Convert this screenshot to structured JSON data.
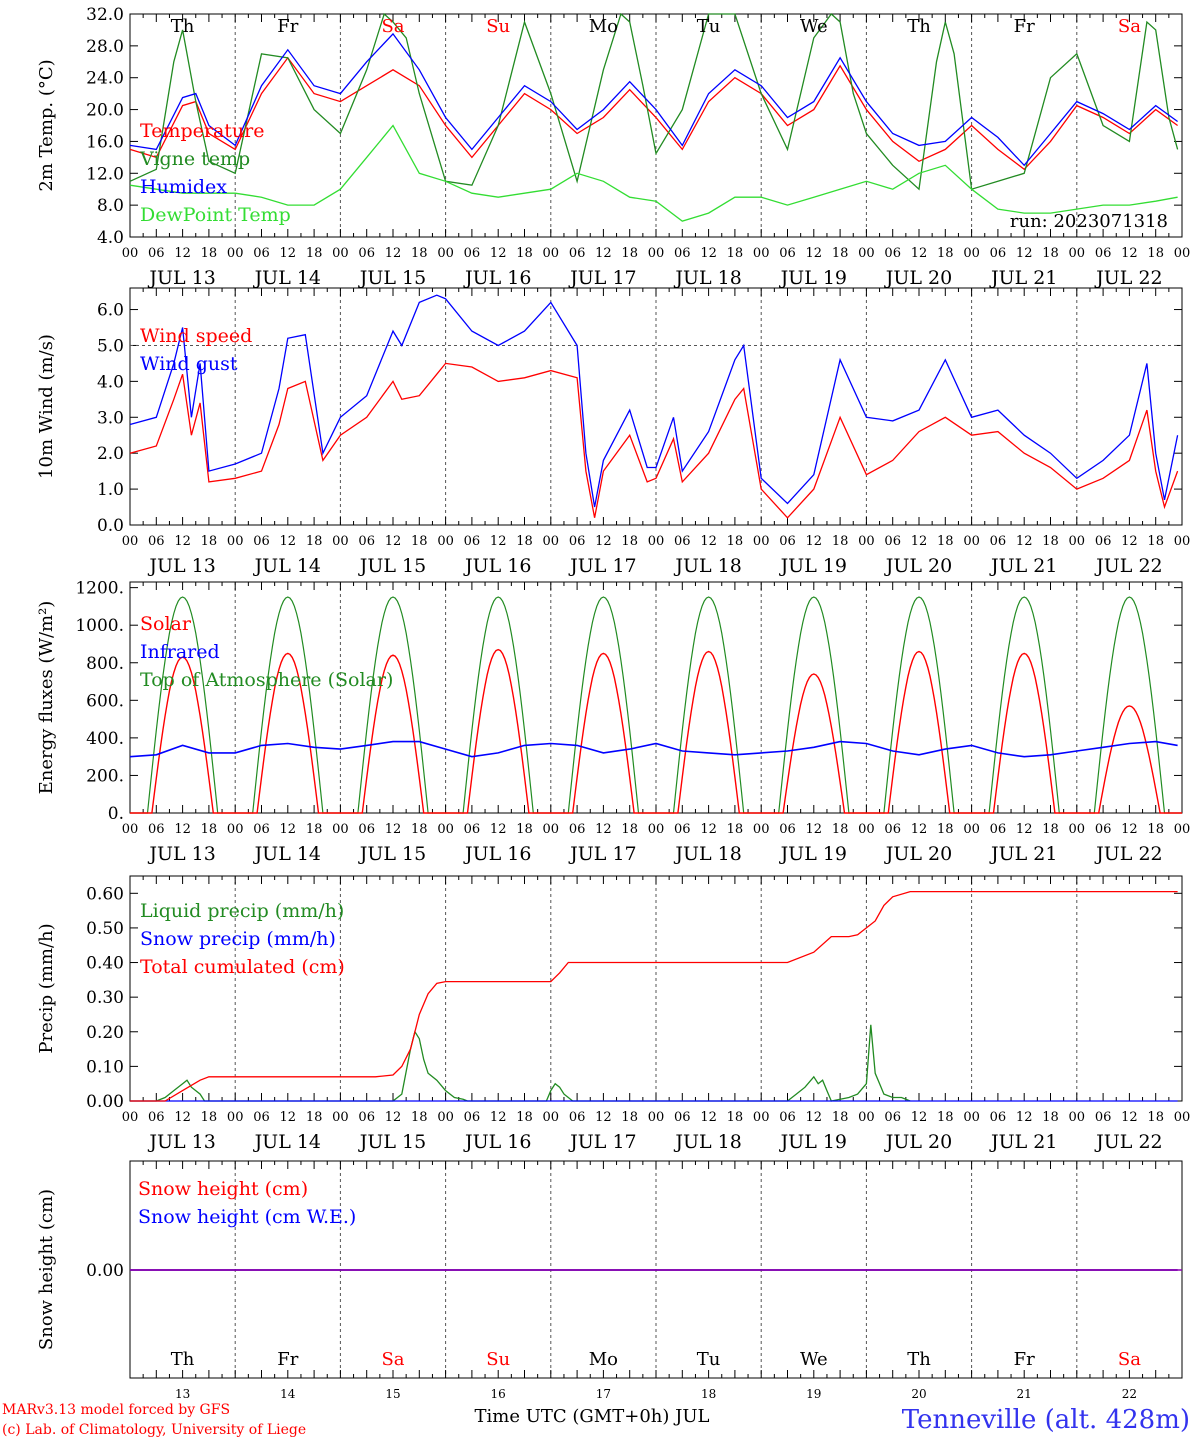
{
  "meta": {
    "run_label": "run: 2023071318",
    "time_axis_label": "Time UTC (GMT+0h) JUL",
    "credit_line1": "MARv3.13 model forced by GFS",
    "credit_line2": "(c) Lab. of Climatology, University of Liege",
    "station": "Tenneville (alt. 428m)"
  },
  "days": [
    {
      "dow": "Th",
      "date": "JUL 13",
      "num": "13",
      "weekend": false
    },
    {
      "dow": "Fr",
      "date": "JUL 14",
      "num": "14",
      "weekend": false
    },
    {
      "dow": "Sa",
      "date": "JUL 15",
      "num": "15",
      "weekend": true
    },
    {
      "dow": "Su",
      "date": "JUL 16",
      "num": "16",
      "weekend": true
    },
    {
      "dow": "Mo",
      "date": "JUL 17",
      "num": "17",
      "weekend": false
    },
    {
      "dow": "Tu",
      "date": "JUL 18",
      "num": "18",
      "weekend": false
    },
    {
      "dow": "We",
      "date": "JUL 19",
      "num": "19",
      "weekend": false
    },
    {
      "dow": "Th",
      "date": "JUL 20",
      "num": "20",
      "weekend": false
    },
    {
      "dow": "Fr",
      "date": "JUL 21",
      "num": "21",
      "weekend": false
    },
    {
      "dow": "Sa",
      "date": "JUL 22",
      "num": "22",
      "weekend": true
    }
  ],
  "hour_labels": [
    "00",
    "06",
    "12",
    "18"
  ],
  "colors": {
    "red": "#ff0000",
    "dark_green": "#228b22",
    "blue": "#0000ff",
    "light_green": "#33dd33",
    "purple": "#8b00b0",
    "grid": "#555555",
    "weekend": "#ff0000"
  },
  "chart_data": [
    {
      "id": "temperature",
      "type": "line",
      "ylabel": "2m Temp. (°C)",
      "yticks": [
        "4.0",
        "8.0",
        "12.0",
        "16.0",
        "20.0",
        "24.0",
        "28.0",
        "32.0"
      ],
      "ylim": [
        4,
        32
      ],
      "x_unit": "hours since JUL 13 00 UTC",
      "series": [
        {
          "name": "Temperature",
          "color": "#ff0000",
          "x": [
            0,
            6,
            12,
            15,
            18,
            24,
            30,
            36,
            42,
            48,
            54,
            60,
            66,
            72,
            78,
            84,
            90,
            96,
            102,
            108,
            114,
            120,
            126,
            132,
            138,
            144,
            150,
            156,
            162,
            168,
            174,
            180,
            186,
            192,
            198,
            204,
            210,
            216,
            222,
            228,
            234,
            239
          ],
          "y": [
            15,
            14,
            20.5,
            21,
            17,
            15,
            22,
            26.5,
            22,
            21,
            23,
            25,
            23,
            18,
            14,
            18,
            22,
            20,
            17,
            19,
            22.5,
            19,
            15,
            21,
            24,
            22,
            18,
            20,
            25.5,
            20,
            16,
            13.5,
            15,
            18,
            15,
            12.5,
            16,
            20.5,
            19,
            17,
            20,
            18
          ]
        },
        {
          "name": "Vigne temp",
          "color": "#228b22",
          "x": [
            0,
            6,
            10,
            12,
            15,
            18,
            24,
            30,
            36,
            42,
            48,
            54,
            58,
            60,
            63,
            66,
            72,
            78,
            84,
            90,
            96,
            102,
            108,
            112,
            114,
            117,
            120,
            126,
            132,
            138,
            144,
            150,
            156,
            160,
            162,
            165,
            168,
            174,
            180,
            184,
            186,
            188,
            192,
            198,
            204,
            210,
            216,
            222,
            228,
            232,
            234,
            237,
            239
          ],
          "y": [
            11,
            12.5,
            26,
            30,
            21,
            13.5,
            12,
            27,
            26.5,
            20,
            17,
            25,
            32,
            31,
            29,
            22,
            11,
            10.5,
            18,
            31,
            22,
            11,
            25,
            32,
            31,
            23,
            14.5,
            20,
            32,
            32,
            22,
            15,
            29,
            32,
            31,
            22,
            17,
            13,
            10,
            26,
            31,
            27,
            10,
            11,
            12,
            24,
            27,
            18,
            16,
            31,
            30,
            19,
            15
          ]
        },
        {
          "name": "Humidex",
          "color": "#0000ff",
          "x": [
            0,
            6,
            12,
            15,
            18,
            24,
            30,
            36,
            42,
            48,
            54,
            60,
            66,
            72,
            78,
            84,
            90,
            96,
            102,
            108,
            114,
            120,
            126,
            132,
            138,
            144,
            150,
            156,
            162,
            168,
            174,
            180,
            186,
            192,
            198,
            204,
            210,
            216,
            222,
            228,
            234,
            239
          ],
          "y": [
            15.5,
            15,
            21.5,
            22,
            18,
            15.5,
            23,
            27.5,
            23,
            22,
            26,
            29.5,
            25,
            19,
            15,
            19,
            23,
            21,
            17.5,
            20,
            23.5,
            20,
            15.5,
            22,
            25,
            23,
            19,
            21,
            26.5,
            21,
            17,
            15.5,
            16,
            19,
            16.5,
            13,
            17,
            21,
            19.5,
            17.5,
            20.5,
            18.5
          ]
        },
        {
          "name": "DewPoint Temp",
          "color": "#33dd33",
          "x": [
            0,
            6,
            12,
            18,
            24,
            30,
            36,
            42,
            48,
            54,
            60,
            66,
            72,
            78,
            84,
            90,
            96,
            102,
            108,
            114,
            120,
            126,
            132,
            138,
            144,
            150,
            156,
            162,
            168,
            174,
            180,
            186,
            192,
            198,
            204,
            210,
            216,
            222,
            228,
            234,
            239
          ],
          "y": [
            10.5,
            10,
            9.5,
            9.5,
            9.5,
            9,
            8,
            8,
            10,
            14,
            18,
            12,
            11,
            9.5,
            9,
            9.5,
            10,
            12,
            11,
            9,
            8.5,
            6,
            7,
            9,
            9,
            8,
            9,
            10,
            11,
            10,
            12,
            13,
            10,
            7.5,
            7,
            7,
            7.5,
            8,
            8,
            8.5,
            9
          ]
        }
      ],
      "legend_placement": "left",
      "reference_line": null
    },
    {
      "id": "wind",
      "type": "line",
      "ylabel": "10m Wind (m/s)",
      "yticks": [
        "0.0",
        "1.0",
        "2.0",
        "3.0",
        "4.0",
        "5.0",
        "6.0"
      ],
      "ylim": [
        0,
        6.6
      ],
      "reference_line": 5.0,
      "x_unit": "hours since JUL 13 00 UTC",
      "series": [
        {
          "name": "Wind speed",
          "color": "#ff0000",
          "x": [
            0,
            6,
            10,
            12,
            14,
            16,
            18,
            24,
            30,
            34,
            36,
            40,
            44,
            48,
            54,
            60,
            62,
            66,
            70,
            72,
            78,
            84,
            90,
            96,
            102,
            104,
            106,
            108,
            114,
            118,
            120,
            124,
            126,
            132,
            138,
            140,
            144,
            150,
            156,
            162,
            168,
            174,
            180,
            186,
            192,
            198,
            204,
            210,
            216,
            222,
            228,
            232,
            234,
            236,
            239
          ],
          "y": [
            2,
            2.2,
            3.5,
            4.2,
            2.5,
            3.4,
            1.2,
            1.3,
            1.5,
            2.8,
            3.8,
            4,
            1.8,
            2.5,
            3,
            4,
            3.5,
            3.6,
            4.2,
            4.5,
            4.4,
            4,
            4.1,
            4.3,
            4.1,
            1.5,
            0.2,
            1.5,
            2.5,
            1.2,
            1.3,
            2.4,
            1.2,
            2,
            3.5,
            3.8,
            1,
            0.2,
            1,
            3,
            1.4,
            1.8,
            2.6,
            3,
            2.5,
            2.6,
            2,
            1.6,
            1,
            1.3,
            1.8,
            3.2,
            1.5,
            0.5,
            1.5
          ]
        },
        {
          "name": "Wind gust",
          "color": "#0000ff",
          "x": [
            0,
            6,
            10,
            12,
            14,
            16,
            18,
            24,
            30,
            34,
            36,
            40,
            44,
            48,
            54,
            60,
            62,
            66,
            70,
            72,
            78,
            84,
            90,
            96,
            102,
            104,
            106,
            108,
            114,
            118,
            120,
            124,
            126,
            132,
            138,
            140,
            144,
            150,
            156,
            162,
            168,
            174,
            180,
            186,
            192,
            198,
            204,
            210,
            216,
            222,
            228,
            232,
            234,
            236,
            239
          ],
          "y": [
            2.8,
            3,
            4.5,
            5.5,
            3,
            4.5,
            1.5,
            1.7,
            2,
            3.8,
            5.2,
            5.3,
            2,
            3,
            3.6,
            5.4,
            5,
            6.2,
            6.4,
            6.3,
            5.4,
            5,
            5.4,
            6.2,
            5,
            2,
            0.5,
            1.8,
            3.2,
            1.6,
            1.6,
            3,
            1.5,
            2.6,
            4.6,
            5,
            1.3,
            0.6,
            1.4,
            4.6,
            3,
            2.9,
            3.2,
            4.6,
            3,
            3.2,
            2.5,
            2,
            1.3,
            1.8,
            2.5,
            4.5,
            2,
            0.7,
            2.5
          ]
        }
      ],
      "legend_placement": "top-left"
    },
    {
      "id": "energy",
      "type": "line",
      "ylabel": "Energy fluxes (W/m²)",
      "yticks": [
        "0.",
        "200.",
        "400.",
        "600.",
        "800.",
        "1000.",
        "1200."
      ],
      "ylim": [
        0,
        1230
      ],
      "reference_line": null,
      "x_unit": "hours since JUL 13 00 UTC",
      "solar_daily_peaks_w_m2": [
        830,
        850,
        840,
        870,
        850,
        860,
        740,
        860,
        850,
        570
      ],
      "toa_daily_peak_w_m2": 1150,
      "daylight_hours_utc": [
        4,
        20
      ],
      "series": [
        {
          "name": "Solar",
          "color": "#ff0000"
        },
        {
          "name": "Infrared",
          "color": "#0000ff",
          "x": [
            0,
            6,
            12,
            18,
            24,
            30,
            36,
            42,
            48,
            54,
            60,
            66,
            72,
            78,
            84,
            90,
            96,
            102,
            108,
            114,
            120,
            126,
            132,
            138,
            144,
            150,
            156,
            162,
            168,
            174,
            180,
            186,
            192,
            198,
            204,
            210,
            216,
            222,
            228,
            234,
            239
          ],
          "y": [
            300,
            310,
            360,
            320,
            320,
            360,
            370,
            350,
            340,
            360,
            380,
            380,
            340,
            300,
            320,
            360,
            370,
            360,
            320,
            340,
            370,
            330,
            320,
            310,
            320,
            330,
            350,
            380,
            370,
            330,
            310,
            340,
            360,
            320,
            300,
            310,
            330,
            350,
            370,
            380,
            360
          ]
        },
        {
          "name": "Top of Atmosphere (Solar)",
          "color": "#228b22"
        }
      ],
      "legend_placement": "left"
    },
    {
      "id": "precip",
      "type": "line",
      "ylabel": "Precip (mm/h)",
      "yticks": [
        "0.00",
        "0.10",
        "0.20",
        "0.30",
        "0.40",
        "0.50",
        "0.60"
      ],
      "ylim": [
        0,
        0.65
      ],
      "reference_line": null,
      "x_unit": "hours since JUL 13 00 UTC",
      "series": [
        {
          "name": "Liquid precip (mm/h)",
          "color": "#228b22",
          "x": [
            0,
            6,
            8,
            10,
            12,
            13,
            14,
            16,
            17,
            60,
            62,
            64,
            65,
            66,
            67,
            68,
            70,
            72,
            74,
            76,
            77,
            95,
            96,
            97,
            98,
            99,
            100,
            101,
            150,
            152,
            154,
            156,
            157,
            158,
            159,
            160,
            164,
            166,
            168,
            169,
            170,
            171,
            172,
            174,
            176,
            178
          ],
          "y": [
            0,
            0,
            0.01,
            0.03,
            0.05,
            0.06,
            0.04,
            0.02,
            0,
            0,
            0.02,
            0.15,
            0.2,
            0.18,
            0.12,
            0.08,
            0.06,
            0.03,
            0.01,
            0.005,
            0,
            0,
            0.03,
            0.05,
            0.04,
            0.02,
            0.01,
            0,
            0,
            0.02,
            0.04,
            0.07,
            0.05,
            0.06,
            0.03,
            0,
            0.01,
            0.02,
            0.05,
            0.22,
            0.08,
            0.05,
            0.02,
            0.01,
            0.01,
            0
          ]
        },
        {
          "name": "Snow precip (mm/h)",
          "color": "#0000ff",
          "x": [
            0,
            239
          ],
          "y": [
            0,
            0
          ]
        },
        {
          "name": "Total cumulated (cm)",
          "color": "#ff0000",
          "x": [
            0,
            8,
            12,
            16,
            18,
            24,
            48,
            56,
            60,
            62,
            64,
            66,
            68,
            70,
            72,
            96,
            98,
            100,
            102,
            104,
            114,
            150,
            156,
            160,
            164,
            166,
            170,
            172,
            174,
            178,
            239
          ],
          "y": [
            0,
            0,
            0.03,
            0.06,
            0.07,
            0.07,
            0.07,
            0.07,
            0.075,
            0.1,
            0.15,
            0.25,
            0.31,
            0.34,
            0.345,
            0.345,
            0.37,
            0.4,
            0.4,
            0.4,
            0.4,
            0.4,
            0.43,
            0.475,
            0.475,
            0.48,
            0.52,
            0.565,
            0.59,
            0.605,
            0.605
          ]
        }
      ],
      "legend_placement": "top-left"
    },
    {
      "id": "snow",
      "type": "line",
      "ylabel": "Snow height (cm)",
      "yticks": [
        "0.00"
      ],
      "ylim": [
        -1,
        1
      ],
      "reference_line": null,
      "x_unit": "hours since JUL 13 00 UTC",
      "series": [
        {
          "name": "Snow height (cm)",
          "color": "#ff0000",
          "x": [
            0,
            239
          ],
          "y": [
            0,
            0
          ]
        },
        {
          "name": "Snow height (cm W.E.)",
          "color": "#0000ff",
          "x": [
            0,
            239
          ],
          "y": [
            0,
            0
          ]
        }
      ],
      "legend_placement": "top-left"
    }
  ]
}
